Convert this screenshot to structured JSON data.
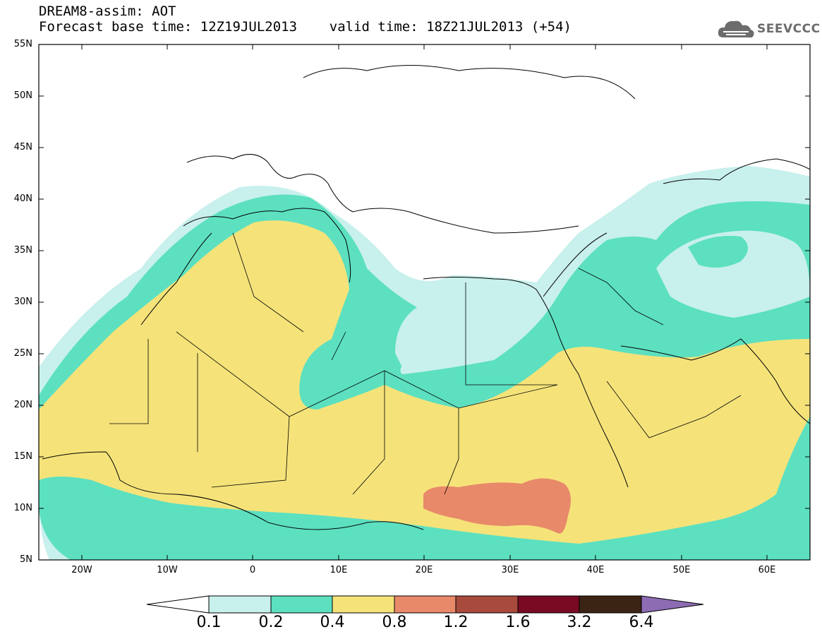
{
  "title": {
    "line1": "DREAM8-assim: AOT",
    "line2": "Forecast base time: 12Z19JUL2013    valid time: 18Z21JUL2013 (+54)"
  },
  "logo": {
    "text": "SEEVCCC",
    "icon": "cloud-logo-icon",
    "color": "#6c6c6c"
  },
  "map": {
    "projection": "lat-lon",
    "lon_range": [
      -25,
      65
    ],
    "lat_range": [
      5,
      55
    ],
    "lat_labels": [
      "55N",
      "50N",
      "45N",
      "40N",
      "35N",
      "30N",
      "25N",
      "20N",
      "15N",
      "10N",
      "5N"
    ],
    "lon_labels": [
      "20W",
      "10W",
      "0",
      "10E",
      "20E",
      "30E",
      "40E",
      "50E",
      "60E"
    ],
    "field": "AOT",
    "levels": [
      "0.1",
      "0.2",
      "0.4",
      "0.8",
      "1.2",
      "1.6",
      "3.2",
      "6.4"
    ],
    "colors": {
      "level_0_1": "#c8f0ec",
      "level_0_2": "#5ce0c0",
      "level_0_4": "#f5e37a",
      "level_0_8": "#e8896a",
      "level_1_2": "#a84a3c",
      "level_1_6": "#7a0a24",
      "level_3_2": "#3c2414",
      "level_6_4": "#8e6cb4"
    }
  }
}
